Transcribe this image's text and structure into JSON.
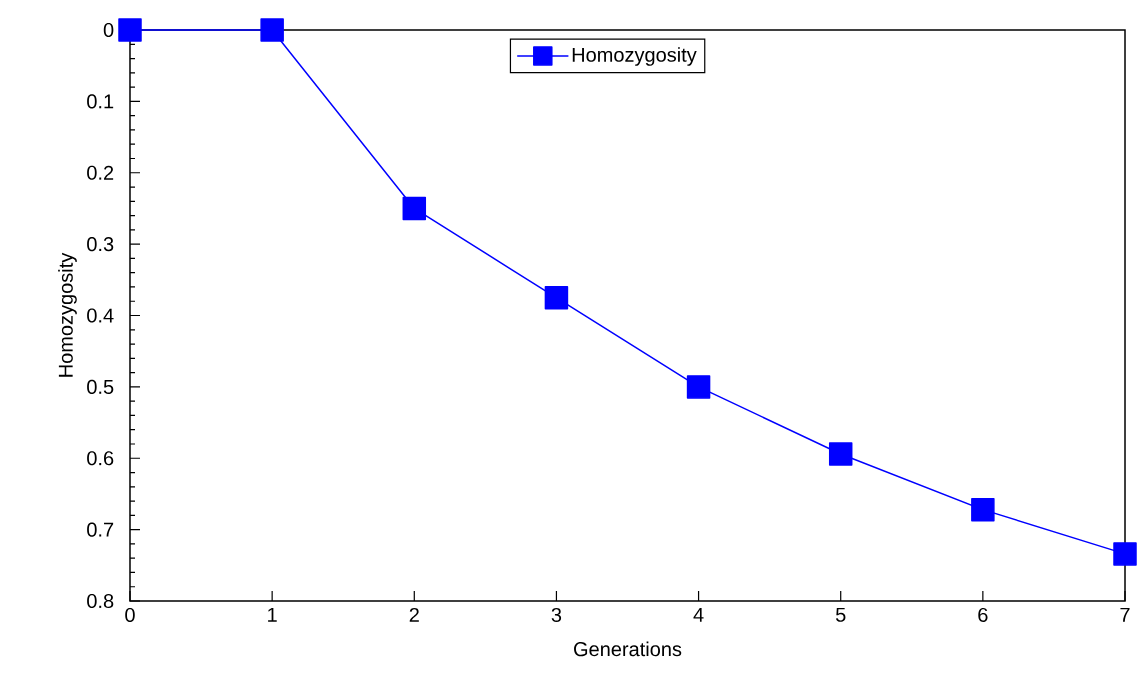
{
  "chart_data": {
    "type": "line",
    "xlabel": "Generations",
    "ylabel": "Homozygosity",
    "x": [
      0,
      1,
      2,
      3,
      4,
      5,
      6,
      7
    ],
    "series": [
      {
        "name": "Homozygosity",
        "color": "#0000ff",
        "values": [
          0,
          0,
          0.25,
          0.375,
          0.5,
          0.594,
          0.672,
          0.734
        ]
      }
    ],
    "xlim": [
      0,
      7
    ],
    "xticks": [
      0,
      1,
      2,
      3,
      4,
      5,
      6,
      7
    ],
    "ylim": [
      0.8,
      0
    ],
    "yticks": [
      0,
      0.1,
      0.2,
      0.3,
      0.4,
      0.5,
      0.6,
      0.7,
      0.8
    ],
    "marker": "square",
    "line_style": "solid",
    "legend": "top",
    "grid": false
  }
}
